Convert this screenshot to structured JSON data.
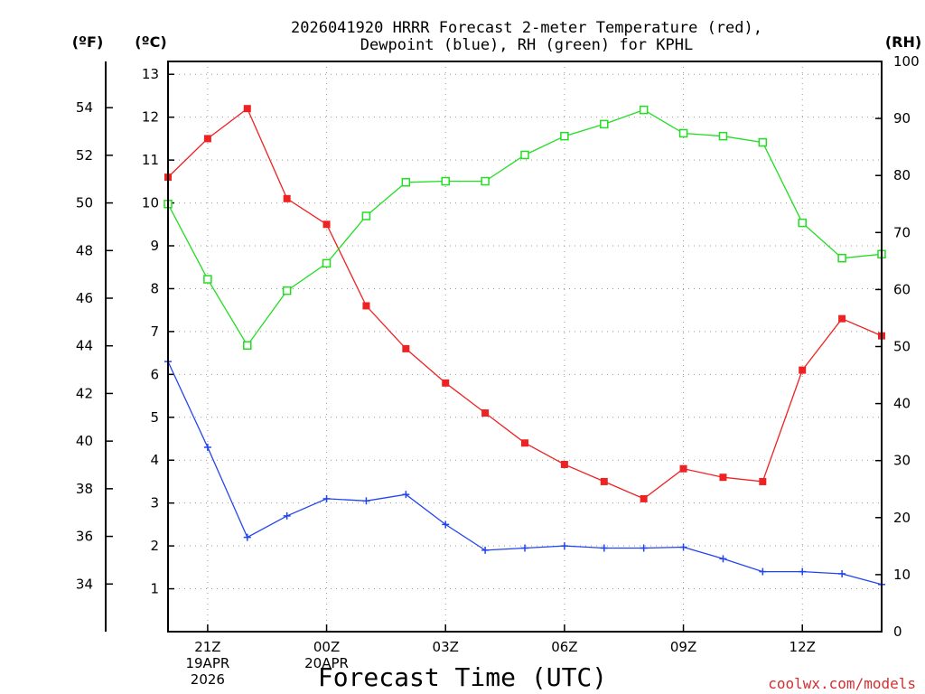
{
  "chart_data": {
    "type": "line",
    "title_line1": "2026041920 HRRR Forecast 2-meter Temperature (red),",
    "title_line2": "Dewpoint (blue), RH (green) for KPHL",
    "xlabel": "Forecast Time (UTC)",
    "watermark": "coolwx.com/models",
    "units": {
      "fahrenheit": "(ºF)",
      "celsius": "(ºC)",
      "rh": "(RH)"
    },
    "x_hours": [
      0,
      1,
      2,
      3,
      4,
      5,
      6,
      7,
      8,
      9,
      10,
      11,
      12,
      13,
      14,
      15,
      16,
      17,
      18
    ],
    "x_ticks": [
      {
        "h": 1,
        "label": "21Z",
        "sub1": "19APR",
        "sub2": "2026"
      },
      {
        "h": 4,
        "label": "00Z",
        "sub1": "20APR",
        "sub2": ""
      },
      {
        "h": 7,
        "label": "03Z",
        "sub1": "",
        "sub2": ""
      },
      {
        "h": 10,
        "label": "06Z",
        "sub1": "",
        "sub2": ""
      },
      {
        "h": 13,
        "label": "09Z",
        "sub1": "",
        "sub2": ""
      },
      {
        "h": 16,
        "label": "12Z",
        "sub1": "",
        "sub2": ""
      }
    ],
    "celsius_axis": {
      "min": 0,
      "max": 13.3,
      "ticks": [
        1,
        2,
        3,
        4,
        5,
        6,
        7,
        8,
        9,
        10,
        11,
        12,
        13
      ]
    },
    "fahrenheit_ticks": [
      34,
      36,
      38,
      40,
      42,
      44,
      46,
      48,
      50,
      52,
      54
    ],
    "rh_axis": {
      "min": 0,
      "max": 100,
      "ticks": [
        0,
        10,
        20,
        30,
        40,
        50,
        60,
        70,
        80,
        90,
        100
      ]
    },
    "series": [
      {
        "name": "Temperature",
        "color": "#ee2222",
        "marker": "filled-square",
        "axis": "celsius",
        "values": [
          10.6,
          11.5,
          12.2,
          10.1,
          9.5,
          7.6,
          6.6,
          5.8,
          5.1,
          4.4,
          3.9,
          3.5,
          3.1,
          3.8,
          3.6,
          3.5,
          6.1,
          7.3,
          6.9
        ]
      },
      {
        "name": "Dewpoint",
        "color": "#2244ee",
        "marker": "plus",
        "axis": "celsius",
        "values": [
          6.3,
          4.3,
          2.2,
          2.7,
          3.1,
          3.05,
          3.2,
          2.5,
          1.9,
          1.95,
          2.0,
          1.95,
          1.95,
          1.97,
          1.7,
          1.4,
          1.4,
          1.35,
          1.1
        ]
      },
      {
        "name": "RH",
        "color": "#22dd22",
        "marker": "open-square",
        "axis": "rh",
        "values": [
          75,
          61.8,
          50.2,
          59.8,
          64.6,
          72.9,
          78.8,
          79.0,
          79.0,
          83.6,
          86.9,
          89.0,
          91.5,
          87.4,
          86.9,
          85.8,
          71.7,
          65.5,
          66.2
        ]
      }
    ]
  }
}
